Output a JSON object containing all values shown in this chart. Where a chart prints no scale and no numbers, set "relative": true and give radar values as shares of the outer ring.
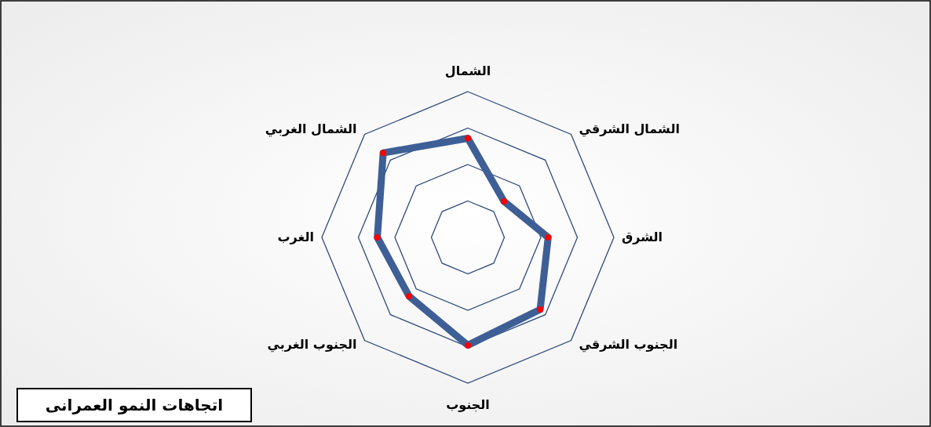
{
  "chart_data": {
    "type": "radar",
    "title": "اتجاهات النمو العمرانى",
    "categories": [
      "الشمال",
      "الشمال الشرقي",
      "الشرق",
      "الجنوب الشرقي",
      "الجنوب",
      "الجنوب الغربي",
      "الغرب",
      "الشمال الغربي"
    ],
    "relative": true,
    "grid": true,
    "marker": "circle",
    "series": [
      {
        "color": "#3d5f96",
        "values": [
          0.68,
          0.35,
          0.55,
          0.7,
          0.74,
          0.57,
          0.62,
          0.82
        ]
      }
    ]
  }
}
